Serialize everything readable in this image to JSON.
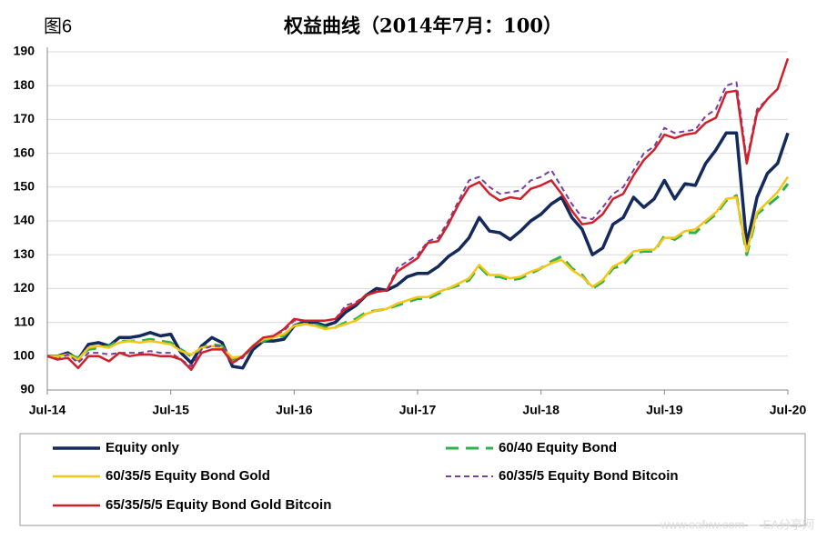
{
  "figure_label": "图6",
  "chart_data": {
    "type": "line",
    "title": "权益曲线（2014年7月：100）",
    "categories": [
      "Jul-14",
      null,
      null,
      null,
      null,
      null,
      null,
      null,
      null,
      null,
      null,
      null,
      "Jul-15",
      null,
      null,
      null,
      null,
      null,
      null,
      null,
      null,
      null,
      null,
      null,
      "Jul-16",
      null,
      null,
      null,
      null,
      null,
      null,
      null,
      null,
      null,
      null,
      null,
      "Jul-17",
      null,
      null,
      null,
      null,
      null,
      null,
      null,
      null,
      null,
      null,
      null,
      "Jul-18",
      null,
      null,
      null,
      null,
      null,
      null,
      null,
      null,
      null,
      null,
      null,
      "Jul-19",
      null,
      null,
      null,
      null,
      null,
      null,
      null,
      null,
      null,
      null,
      null,
      "Jul-20"
    ],
    "ylim": [
      90,
      190
    ],
    "yticks": [
      90,
      100,
      110,
      120,
      130,
      140,
      150,
      160,
      170,
      180,
      190
    ],
    "grid": true,
    "series": [
      {
        "name": "Equity only",
        "color": "#142a5c",
        "dashed": false,
        "width": 3.5,
        "values": [
          100,
          100,
          101,
          99,
          103.5,
          104,
          103,
          105.5,
          105.5,
          106,
          107,
          106,
          106.5,
          101,
          98,
          103,
          105.5,
          104,
          97,
          96.5,
          102,
          104.5,
          104.5,
          105,
          109,
          110,
          110,
          109,
          110,
          113,
          115,
          118,
          120,
          119.5,
          121,
          123.5,
          124.5,
          124.5,
          126.5,
          129.5,
          131.5,
          135,
          141,
          137,
          136.5,
          134.5,
          137,
          140,
          142,
          145,
          147,
          141,
          137.5,
          130,
          132,
          139,
          141,
          147,
          144,
          146.5,
          152,
          146.5,
          151,
          150.5,
          157,
          161,
          166,
          166,
          133,
          147,
          154,
          157,
          166
        ]
      },
      {
        "name": "60/40 Equity Bond",
        "color": "#2db34a",
        "dashed": true,
        "width": 3,
        "values": [
          100,
          100,
          100.5,
          99.5,
          102,
          102.5,
          103,
          104.5,
          104.5,
          104.5,
          105,
          104.5,
          104,
          102,
          100,
          102.5,
          103.5,
          103,
          99,
          99.5,
          103,
          104.5,
          105.5,
          106,
          109,
          109.5,
          109.5,
          108.5,
          108.5,
          110,
          111,
          113,
          113.5,
          114,
          115,
          116,
          117,
          117,
          118.5,
          120,
          121,
          122.5,
          126.5,
          123.5,
          123.5,
          122.5,
          123,
          124.5,
          126,
          128,
          129.5,
          126,
          124,
          120,
          122,
          126,
          127,
          130.5,
          131,
          131,
          135.5,
          134.5,
          136.5,
          136.5,
          139.5,
          142,
          146,
          147.5,
          130,
          142,
          144.5,
          147,
          151
        ]
      },
      {
        "name": "60/35/5 Equity Bond Gold",
        "color": "#f5c518",
        "dashed": false,
        "width": 2.5,
        "values": [
          100,
          100,
          100.5,
          99,
          102.5,
          103,
          102.5,
          104,
          104.5,
          104,
          104.5,
          104,
          103.5,
          101.5,
          100.5,
          102.5,
          103,
          102.5,
          99.5,
          100,
          103,
          105,
          105.5,
          106.5,
          109,
          109.5,
          109,
          108,
          108.5,
          109.5,
          110.5,
          112.5,
          113.5,
          114,
          115.5,
          116.5,
          117.5,
          117.5,
          119,
          120,
          121.5,
          123,
          127,
          124,
          124,
          123,
          123.5,
          125,
          126,
          127.5,
          128.5,
          125.5,
          123.5,
          120.5,
          122.5,
          126.5,
          128,
          131,
          131.5,
          131.5,
          135,
          135,
          137,
          137.5,
          140,
          142.5,
          146.5,
          147,
          131,
          142.5,
          145.5,
          148.5,
          153
        ]
      },
      {
        "name": "60/35/5 Equity Bond Bitcoin",
        "color": "#7b3fa0",
        "dashed": true,
        "width": 2,
        "values": [
          100,
          99,
          100.5,
          98,
          101,
          101,
          100.5,
          101,
          101,
          101,
          101.5,
          101,
          101,
          99,
          97,
          102,
          103,
          103,
          98,
          99.5,
          103,
          105.5,
          106,
          107.5,
          110.5,
          110.5,
          110.5,
          110.5,
          111,
          115,
          116,
          118,
          119,
          119.5,
          126,
          128,
          130,
          134,
          135,
          140,
          146,
          152,
          153,
          150,
          148,
          148.5,
          149,
          152,
          153,
          155,
          150,
          145,
          141,
          140.5,
          144,
          148,
          150,
          155,
          160,
          162,
          167.5,
          166,
          166.5,
          167,
          171,
          173,
          180,
          181,
          158,
          173,
          176,
          179,
          188
        ]
      },
      {
        "name": "65/35/5/5 Equity Bond Gold Bitcoin",
        "color": "#d0202a",
        "dashed": false,
        "width": 2.5,
        "values": [
          100,
          99,
          99.5,
          96.5,
          100,
          100,
          98.5,
          101,
          100,
          100.5,
          100.5,
          100,
          100,
          99,
          96,
          101,
          102,
          102,
          98,
          100,
          103,
          105.5,
          106,
          108,
          111,
          110.5,
          110.5,
          110.5,
          111,
          114,
          115.5,
          118,
          119,
          119.5,
          125,
          127,
          129,
          133.5,
          134,
          139,
          145,
          150,
          151.5,
          148,
          146,
          147,
          146.5,
          149.5,
          150.5,
          152,
          148,
          143,
          139,
          139.5,
          142,
          146.5,
          148,
          153.5,
          158,
          161,
          165.5,
          164.5,
          165.5,
          166,
          169,
          170.5,
          178,
          178.5,
          157,
          172,
          176,
          179,
          188
        ]
      }
    ]
  },
  "watermark": "www.eafxw.com — EA分享网"
}
